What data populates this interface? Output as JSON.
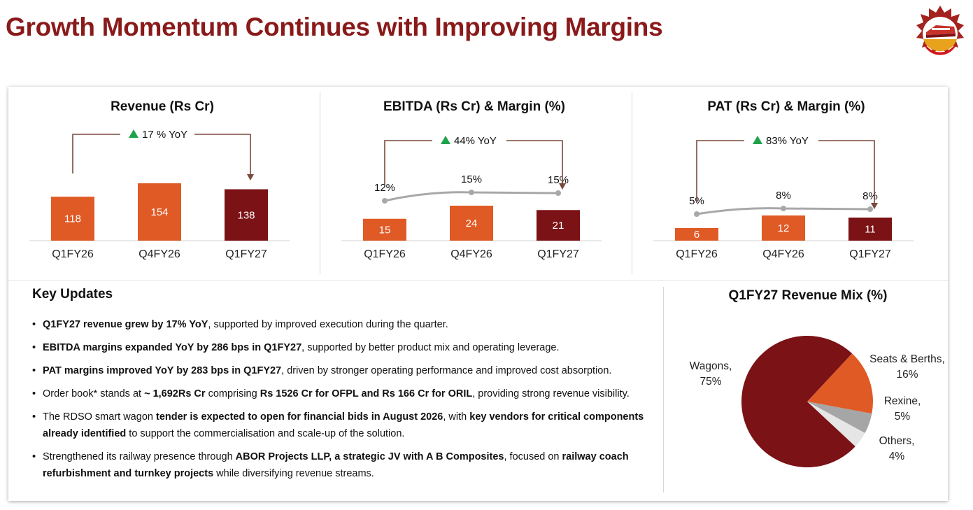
{
  "title": "Growth Momentum Continues with Improving Margins",
  "colors": {
    "orange": "#e05a26",
    "maroon": "#7b1216",
    "line": "#a8a8a8",
    "arrow": "#7a4a3c",
    "up": "#1ea34a",
    "grey": "#a6a6a6",
    "light": "#e6e6e6"
  },
  "icons": {
    "logo": "railway-emblem-logo",
    "up": "triangle-up-icon"
  },
  "chart_data": [
    {
      "type": "bar",
      "title": "Revenue (Rs Cr)",
      "categories": [
        "Q1FY26",
        "Q4FY26",
        "Q1FY27"
      ],
      "values": [
        118,
        154,
        138
      ],
      "bar_colors": [
        "#e05a26",
        "#e05a26",
        "#7b1216"
      ],
      "annotation": "17 % YoY",
      "ylim": [
        0,
        154
      ]
    },
    {
      "type": "bar",
      "title": "EBITDA (Rs Cr) & Margin (%)",
      "categories": [
        "Q1FY26",
        "Q4FY26",
        "Q1FY27"
      ],
      "values": [
        15,
        24,
        21
      ],
      "bar_colors": [
        "#e05a26",
        "#e05a26",
        "#7b1216"
      ],
      "margin_labels": [
        "12%",
        "15%",
        "15%"
      ],
      "margin_values": [
        12,
        15,
        15
      ],
      "annotation": "44% YoY",
      "ylim": [
        0,
        24
      ]
    },
    {
      "type": "bar",
      "title": "PAT (Rs Cr) & Margin (%)",
      "categories": [
        "Q1FY26",
        "Q4FY26",
        "Q1FY27"
      ],
      "values": [
        6,
        12,
        11
      ],
      "bar_colors": [
        "#e05a26",
        "#e05a26",
        "#7b1216"
      ],
      "margin_labels": [
        "5%",
        "8%",
        "8%"
      ],
      "margin_values": [
        5,
        8,
        8
      ],
      "annotation": "83% YoY",
      "ylim": [
        0,
        12
      ]
    },
    {
      "type": "pie",
      "title": "Q1FY27 Revenue Mix (%)",
      "slices": [
        {
          "label": "Wagons,",
          "pct_label": "75%",
          "value": 75,
          "color": "#7b1216"
        },
        {
          "label": "Seats & Berths,",
          "pct_label": "16%",
          "value": 16,
          "color": "#e05a26"
        },
        {
          "label": "Rexine,",
          "pct_label": "5%",
          "value": 5,
          "color": "#a6a6a6"
        },
        {
          "label": "Others,",
          "pct_label": "4%",
          "value": 4,
          "color": "#e6e6e6"
        }
      ]
    }
  ],
  "key_updates": {
    "title": "Key Updates",
    "items": [
      [
        {
          "t": "Q1FY27 revenue grew by 17% YoY",
          "b": true
        },
        {
          "t": ", supported by improved execution during the quarter."
        }
      ],
      [
        {
          "t": "EBITDA margins expanded YoY by 286 bps in Q1FY27",
          "b": true
        },
        {
          "t": ", supported by better product mix and operating leverage."
        }
      ],
      [
        {
          "t": "PAT margins improved YoY by 283 bps in Q1FY27",
          "b": true
        },
        {
          "t": ", driven by stronger operating performance and improved cost absorption."
        }
      ],
      [
        {
          "t": "Order book* stands at "
        },
        {
          "t": "~ 1,692Rs  Cr",
          "b": true
        },
        {
          "t": " comprising "
        },
        {
          "t": "Rs 1526 Cr for OFPL and Rs 166 Cr for ORIL",
          "b": true
        },
        {
          "t": ", providing strong revenue visibility."
        }
      ],
      [
        {
          "t": "The RDSO smart wagon "
        },
        {
          "t": "tender is expected to open for financial bids in August 2026",
          "b": true
        },
        {
          "t": ", with "
        },
        {
          "t": "key vendors for critical components already identified",
          "b": true
        },
        {
          "t": " to support the commercialisation and scale-up of the solution."
        }
      ],
      [
        {
          "t": "Strengthened its railway presence through "
        },
        {
          "t": "ABOR Projects LLP, a strategic JV with A B Composites",
          "b": true
        },
        {
          "t": ", focused on "
        },
        {
          "t": "railway coach refurbishment and turnkey projects",
          "b": true
        },
        {
          "t": " while diversifying revenue streams."
        }
      ]
    ]
  }
}
